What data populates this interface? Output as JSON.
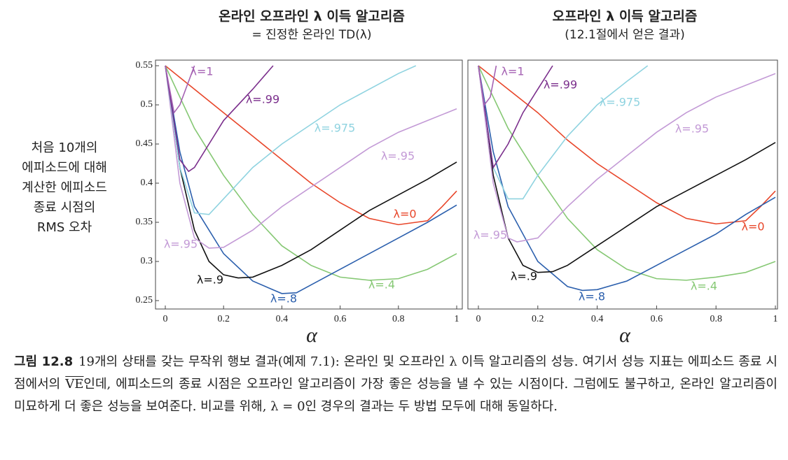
{
  "chart_data": [
    {
      "type": "line",
      "title": "온라인 오프라인 λ 이득 알고리즘",
      "subtitle": "= 진정한 온라인 TD(λ)",
      "ylabel": [
        "처음 10개의",
        "에피소드에 대해",
        "계산한 에피소드",
        "종료 시점의",
        "RMS 오차"
      ],
      "xlabel": "α",
      "xlim": [
        0,
        1
      ],
      "ylim": [
        0.25,
        0.55
      ],
      "xticks": [
        0,
        0.2,
        0.4,
        0.6,
        0.8,
        1
      ],
      "yticks": [
        0.25,
        0.3,
        0.35,
        0.4,
        0.45,
        0.5,
        0.55
      ],
      "series": [
        {
          "name": "λ=0",
          "color": "#e8462a",
          "x": [
            0,
            0.1,
            0.2,
            0.3,
            0.4,
            0.5,
            0.6,
            0.7,
            0.8,
            0.9,
            0.95,
            1
          ],
          "values": [
            0.55,
            0.52,
            0.49,
            0.46,
            0.43,
            0.4,
            0.375,
            0.355,
            0.347,
            0.352,
            0.37,
            0.39
          ]
        },
        {
          "name": "λ=.4",
          "color": "#86c874",
          "x": [
            0,
            0.1,
            0.2,
            0.3,
            0.4,
            0.5,
            0.6,
            0.7,
            0.8,
            0.9,
            1
          ],
          "values": [
            0.55,
            0.47,
            0.41,
            0.36,
            0.32,
            0.295,
            0.28,
            0.276,
            0.278,
            0.29,
            0.31
          ]
        },
        {
          "name": "λ=.8",
          "color": "#2b5fad",
          "x": [
            0,
            0.05,
            0.1,
            0.2,
            0.3,
            0.4,
            0.45,
            0.5,
            0.6,
            0.7,
            0.8,
            0.9,
            1
          ],
          "values": [
            0.55,
            0.44,
            0.37,
            0.31,
            0.275,
            0.259,
            0.26,
            0.27,
            0.29,
            0.31,
            0.33,
            0.35,
            0.372
          ]
        },
        {
          "name": "λ=.9",
          "color": "#111111",
          "x": [
            0,
            0.05,
            0.1,
            0.15,
            0.2,
            0.25,
            0.3,
            0.4,
            0.5,
            0.6,
            0.7,
            0.8,
            0.9,
            1
          ],
          "values": [
            0.55,
            0.42,
            0.34,
            0.3,
            0.283,
            0.279,
            0.28,
            0.295,
            0.315,
            0.34,
            0.365,
            0.385,
            0.405,
            0.427
          ]
        },
        {
          "name": "λ=.95",
          "color": "#c39ad6",
          "x": [
            0,
            0.05,
            0.1,
            0.15,
            0.2,
            0.3,
            0.4,
            0.5,
            0.6,
            0.7,
            0.8,
            0.9,
            1
          ],
          "values": [
            0.55,
            0.4,
            0.33,
            0.317,
            0.318,
            0.34,
            0.37,
            0.395,
            0.42,
            0.445,
            0.465,
            0.48,
            0.495
          ]
        },
        {
          "name": "λ=.975",
          "color": "#8fd3e0",
          "x": [
            0,
            0.05,
            0.1,
            0.15,
            0.2,
            0.3,
            0.4,
            0.5,
            0.6,
            0.7,
            0.8,
            0.86
          ],
          "values": [
            0.55,
            0.42,
            0.362,
            0.36,
            0.38,
            0.42,
            0.45,
            0.475,
            0.5,
            0.52,
            0.54,
            0.55
          ]
        },
        {
          "name": "λ=.99",
          "color": "#7b2f8c",
          "x": [
            0,
            0.05,
            0.08,
            0.1,
            0.15,
            0.2,
            0.3,
            0.37
          ],
          "values": [
            0.55,
            0.43,
            0.415,
            0.42,
            0.45,
            0.48,
            0.52,
            0.55
          ]
        },
        {
          "name": "λ=1",
          "color": "#a562b3",
          "x": [
            0,
            0.03,
            0.05,
            0.08,
            0.1
          ],
          "values": [
            0.55,
            0.49,
            0.5,
            0.53,
            0.55
          ]
        }
      ]
    },
    {
      "type": "line",
      "title": "오프라인 λ 이득 알고리즘",
      "subtitle": "(12.1절에서 얻은 결과)",
      "xlabel": "α",
      "xlim": [
        0,
        1
      ],
      "ylim": [
        0.25,
        0.55
      ],
      "xticks": [
        0,
        0.2,
        0.4,
        0.6,
        0.8,
        1
      ],
      "series": [
        {
          "name": "λ=0",
          "color": "#e8462a",
          "x": [
            0,
            0.1,
            0.2,
            0.3,
            0.4,
            0.5,
            0.6,
            0.7,
            0.8,
            0.9,
            0.95,
            1
          ],
          "values": [
            0.55,
            0.52,
            0.49,
            0.455,
            0.425,
            0.4,
            0.375,
            0.355,
            0.348,
            0.352,
            0.37,
            0.39
          ]
        },
        {
          "name": "λ=.4",
          "color": "#86c874",
          "x": [
            0,
            0.1,
            0.2,
            0.3,
            0.4,
            0.5,
            0.6,
            0.7,
            0.8,
            0.9,
            1
          ],
          "values": [
            0.55,
            0.47,
            0.41,
            0.355,
            0.315,
            0.29,
            0.278,
            0.276,
            0.28,
            0.286,
            0.3
          ]
        },
        {
          "name": "λ=.8",
          "color": "#2b5fad",
          "x": [
            0,
            0.05,
            0.1,
            0.2,
            0.3,
            0.35,
            0.4,
            0.5,
            0.6,
            0.7,
            0.8,
            0.9,
            1
          ],
          "values": [
            0.55,
            0.44,
            0.37,
            0.3,
            0.268,
            0.263,
            0.264,
            0.275,
            0.295,
            0.315,
            0.335,
            0.36,
            0.382
          ]
        },
        {
          "name": "λ=.9",
          "color": "#111111",
          "x": [
            0,
            0.05,
            0.1,
            0.15,
            0.2,
            0.25,
            0.3,
            0.4,
            0.5,
            0.6,
            0.7,
            0.8,
            0.9,
            1
          ],
          "values": [
            0.55,
            0.41,
            0.33,
            0.295,
            0.286,
            0.287,
            0.295,
            0.32,
            0.345,
            0.37,
            0.39,
            0.41,
            0.43,
            0.452
          ]
        },
        {
          "name": "λ=.95",
          "color": "#c39ad6",
          "x": [
            0,
            0.05,
            0.1,
            0.13,
            0.2,
            0.3,
            0.4,
            0.5,
            0.6,
            0.7,
            0.8,
            0.9,
            1
          ],
          "values": [
            0.55,
            0.4,
            0.33,
            0.325,
            0.33,
            0.37,
            0.405,
            0.435,
            0.465,
            0.49,
            0.51,
            0.525,
            0.54
          ]
        },
        {
          "name": "λ=.975",
          "color": "#8fd3e0",
          "x": [
            0,
            0.05,
            0.1,
            0.15,
            0.2,
            0.3,
            0.4,
            0.5,
            0.57
          ],
          "values": [
            0.55,
            0.42,
            0.38,
            0.38,
            0.41,
            0.46,
            0.5,
            0.53,
            0.55
          ]
        },
        {
          "name": "λ=.99",
          "color": "#7b2f8c",
          "x": [
            0,
            0.05,
            0.1,
            0.15,
            0.2,
            0.25
          ],
          "values": [
            0.55,
            0.42,
            0.45,
            0.49,
            0.52,
            0.55
          ]
        },
        {
          "name": "λ=1",
          "color": "#a562b3",
          "x": [
            0,
            0.02,
            0.04,
            0.06
          ],
          "values": [
            0.55,
            0.5,
            0.51,
            0.55
          ]
        }
      ]
    }
  ],
  "caption": {
    "label": "그림 12.8",
    "text_before": "19개의 상태를 갖는 무작위 행보 결과(예제 7.1): 온라인 및 오프라인 λ 이득 알고리즘의 성능. 여기서 성능 지표는 에피소드 종료 시점에서의 ",
    "overline": "VE",
    "text_after": "인데, 에피소드의 종료 시점은 오프라인 알고리즘이 가장 좋은 성능을 낼 수 있는 시점이다. 그럼에도 불구하고, 온라인 알고리즘이 미묘하게 더 좋은 성능을 보여준다. 비교를 위해, λ = 0인 경우의 결과는 두 방법 모두에 대해 동일하다."
  }
}
